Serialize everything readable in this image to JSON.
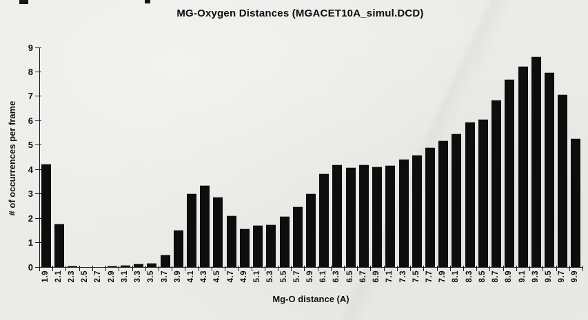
{
  "title": "MG-Oxygen Distances (MGACET10A_simul.DCD)",
  "chart_data": {
    "type": "bar",
    "title": "MG-Oxygen Distances (MGACET10A_simul.DCD)",
    "xlabel": "Mg-O distance (A)",
    "ylabel": "# of occurrences per frame",
    "categories": [
      "1.9",
      "2.1",
      "2.3",
      "2.5",
      "2.7",
      "2.9",
      "3.1",
      "3.3",
      "3.5",
      "3.7",
      "3.9",
      "4.1",
      "4.3",
      "4.5",
      "4.7",
      "4.9",
      "5.1",
      "5.3",
      "5.5",
      "5.7",
      "5.9",
      "6.1",
      "6.3",
      "6.5",
      "6.7",
      "6.9",
      "7.1",
      "7.3",
      "7.5",
      "7.7",
      "7.9",
      "8.1",
      "8.3",
      "8.5",
      "8.7",
      "8.9",
      "9.1",
      "9.3",
      "9.5",
      "9.7",
      "9.9"
    ],
    "values": [
      4.2,
      1.75,
      0.02,
      0,
      0,
      0.02,
      0.05,
      0.1,
      0.15,
      0.47,
      1.5,
      3.0,
      3.32,
      2.85,
      2.1,
      1.55,
      1.68,
      1.73,
      2.05,
      2.45,
      3.0,
      3.8,
      4.18,
      4.05,
      4.18,
      4.08,
      4.15,
      4.4,
      4.58,
      4.88,
      5.15,
      5.45,
      5.93,
      6.05,
      6.82,
      7.68,
      8.2,
      8.6,
      7.95,
      7.05,
      5.25
    ],
    "ylim": [
      0,
      9
    ],
    "ytick_step": 1,
    "grid": false,
    "legend": "none",
    "bar_color": "#0d0d0d",
    "background_color": "#ebebe8"
  }
}
